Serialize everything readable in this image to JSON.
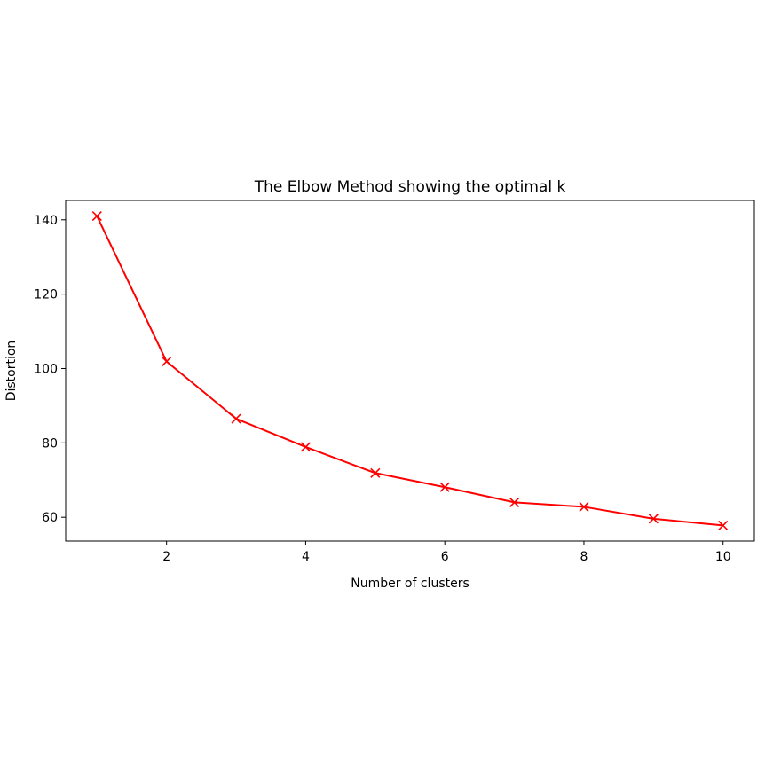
{
  "chart_data": {
    "type": "line",
    "title": "The Elbow Method showing the optimal k",
    "xlabel": "Number of clusters",
    "ylabel": "Distortion",
    "x": [
      1,
      2,
      3,
      4,
      5,
      6,
      7,
      8,
      9,
      10
    ],
    "series": [
      {
        "name": "Distortion",
        "color": "#ff0000",
        "marker": "x",
        "values": [
          141.0,
          101.9,
          86.5,
          78.9,
          71.9,
          68.1,
          64.0,
          62.8,
          59.6,
          57.8
        ]
      }
    ],
    "xlim": [
      0.55,
      10.45
    ],
    "ylim": [
      53.6,
      145.2
    ],
    "xticks": [
      2,
      4,
      6,
      8,
      10
    ],
    "yticks": [
      60,
      80,
      100,
      120,
      140
    ],
    "grid": false,
    "legend": "none"
  }
}
